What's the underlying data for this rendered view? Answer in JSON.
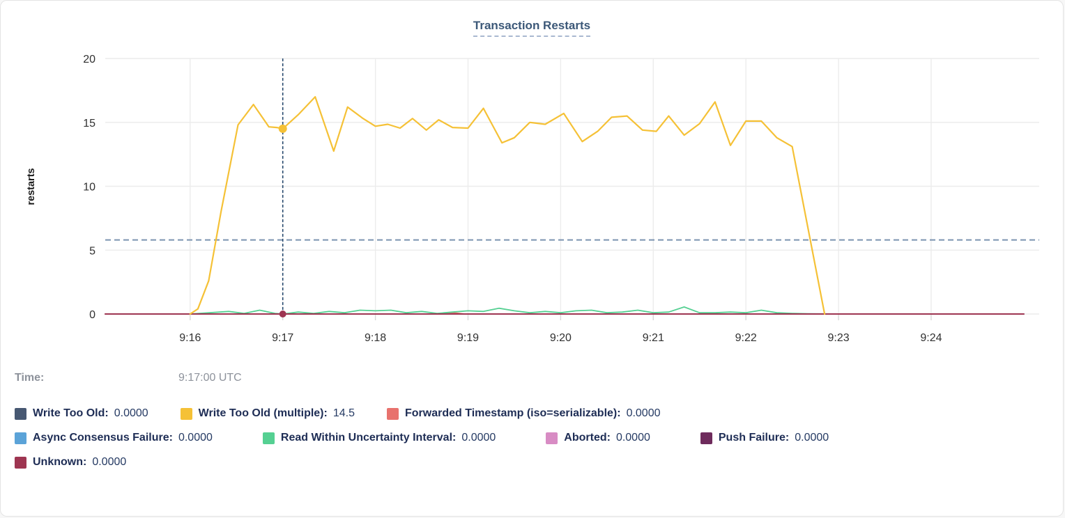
{
  "title": "Transaction Restarts",
  "tooltip": {
    "time_label": "Time:",
    "time_value": "9:17:00 UTC"
  },
  "chart_data": {
    "type": "line",
    "title": "Transaction Restarts",
    "xlabel": "",
    "ylabel": "restarts",
    "ylim": [
      0,
      20
    ],
    "yticks": [
      0,
      5,
      10,
      15,
      20
    ],
    "xticks": [
      {
        "label": "9:16",
        "t": "9:16:00"
      },
      {
        "label": "9:17",
        "t": "9:17:00"
      },
      {
        "label": "9:18",
        "t": "9:18:00"
      },
      {
        "label": "9:19",
        "t": "9:19:00"
      },
      {
        "label": "9:20",
        "t": "9:20:00"
      },
      {
        "label": "9:21",
        "t": "9:21:00"
      },
      {
        "label": "9:22",
        "t": "9:22:00"
      },
      {
        "label": "9:23",
        "t": "9:23:00"
      },
      {
        "label": "9:24",
        "t": "9:24:00"
      }
    ],
    "x_domain": [
      "9:15:05",
      "9:25:10"
    ],
    "grid": true,
    "legend_position": "bottom",
    "cursor": {
      "time": "9:17:00",
      "color": "#26486d"
    },
    "threshold_line": {
      "value": 5.8,
      "color": "#7b93b0"
    },
    "series": [
      {
        "name": "Write Too Old",
        "color": "#475872",
        "z": 0,
        "width": 1.8,
        "legend_value": "0.0000",
        "points": [
          [
            "9:15:05",
            0
          ],
          [
            "9:25:00",
            0
          ]
        ]
      },
      {
        "name": "Write Too Old (multiple)",
        "color": "#f5c136",
        "z": 7,
        "width": 2.2,
        "legend_value": "14.5",
        "cursor_dot": true,
        "cursor_value": 14.5,
        "dot_r": 6,
        "points": [
          [
            "9:16:00",
            0
          ],
          [
            "9:16:05",
            0.4
          ],
          [
            "9:16:12",
            2.6
          ],
          [
            "9:16:20",
            8.0
          ],
          [
            "9:16:31",
            14.8
          ],
          [
            "9:16:41",
            16.4
          ],
          [
            "9:16:51",
            14.65
          ],
          [
            "9:16:56",
            14.6
          ],
          [
            "9:17:00",
            14.5
          ],
          [
            "9:17:10",
            15.6
          ],
          [
            "9:17:21",
            17.0
          ],
          [
            "9:17:33",
            12.75
          ],
          [
            "9:17:42",
            16.2
          ],
          [
            "9:17:52",
            15.3
          ],
          [
            "9:18:00",
            14.7
          ],
          [
            "9:18:08",
            14.85
          ],
          [
            "9:18:16",
            14.55
          ],
          [
            "9:18:24",
            15.3
          ],
          [
            "9:18:33",
            14.4
          ],
          [
            "9:18:41",
            15.2
          ],
          [
            "9:18:50",
            14.6
          ],
          [
            "9:19:00",
            14.55
          ],
          [
            "9:19:10",
            16.1
          ],
          [
            "9:19:22",
            13.4
          ],
          [
            "9:19:30",
            13.8
          ],
          [
            "9:19:40",
            15.0
          ],
          [
            "9:19:50",
            14.85
          ],
          [
            "9:20:02",
            15.7
          ],
          [
            "9:20:14",
            13.5
          ],
          [
            "9:20:24",
            14.3
          ],
          [
            "9:20:33",
            15.4
          ],
          [
            "9:20:43",
            15.5
          ],
          [
            "9:20:53",
            14.4
          ],
          [
            "9:21:02",
            14.3
          ],
          [
            "9:21:10",
            15.5
          ],
          [
            "9:21:20",
            14.0
          ],
          [
            "9:21:30",
            14.9
          ],
          [
            "9:21:40",
            16.6
          ],
          [
            "9:21:50",
            13.2
          ],
          [
            "9:22:00",
            15.1
          ],
          [
            "9:22:10",
            15.1
          ],
          [
            "9:22:20",
            13.8
          ],
          [
            "9:22:30",
            13.1
          ],
          [
            "9:22:51",
            0
          ]
        ]
      },
      {
        "name": "Forwarded Timestamp (iso=serializable)",
        "color": "#e8726d",
        "z": 4,
        "width": 1.8,
        "legend_value": "0.0000",
        "points": [
          [
            "9:15:05",
            0
          ],
          [
            "9:18:42",
            0
          ],
          [
            "9:18:50",
            0.1
          ],
          [
            "9:18:58",
            0
          ],
          [
            "9:25:00",
            0
          ]
        ]
      },
      {
        "name": "Async Consensus Failure",
        "color": "#5ba3d8",
        "z": 1,
        "width": 1.8,
        "legend_value": "0.0000",
        "points": [
          [
            "9:15:05",
            0
          ],
          [
            "9:25:00",
            0
          ]
        ]
      },
      {
        "name": "Read Within Uncertainty Interval",
        "color": "#55d092",
        "z": 5,
        "width": 1.8,
        "legend_value": "0.0000",
        "points": [
          [
            "9:16:00",
            0
          ],
          [
            "9:16:25",
            0.2
          ],
          [
            "9:16:35",
            0.05
          ],
          [
            "9:16:45",
            0.3
          ],
          [
            "9:16:55",
            0.05
          ],
          [
            "9:17:00",
            0
          ],
          [
            "9:17:10",
            0.15
          ],
          [
            "9:17:20",
            0.05
          ],
          [
            "9:17:30",
            0.2
          ],
          [
            "9:17:40",
            0.1
          ],
          [
            "9:17:50",
            0.3
          ],
          [
            "9:18:00",
            0.25
          ],
          [
            "9:18:10",
            0.3
          ],
          [
            "9:18:20",
            0.1
          ],
          [
            "9:18:30",
            0.2
          ],
          [
            "9:18:40",
            0.05
          ],
          [
            "9:18:50",
            0.15
          ],
          [
            "9:19:00",
            0.25
          ],
          [
            "9:19:10",
            0.2
          ],
          [
            "9:19:20",
            0.45
          ],
          [
            "9:19:30",
            0.25
          ],
          [
            "9:19:40",
            0.1
          ],
          [
            "9:19:50",
            0.2
          ],
          [
            "9:20:00",
            0.1
          ],
          [
            "9:20:10",
            0.25
          ],
          [
            "9:20:20",
            0.3
          ],
          [
            "9:20:30",
            0.1
          ],
          [
            "9:20:40",
            0.15
          ],
          [
            "9:20:50",
            0.3
          ],
          [
            "9:21:00",
            0.1
          ],
          [
            "9:21:10",
            0.15
          ],
          [
            "9:21:20",
            0.55
          ],
          [
            "9:21:30",
            0.1
          ],
          [
            "9:21:40",
            0.1
          ],
          [
            "9:21:50",
            0.15
          ],
          [
            "9:22:00",
            0.1
          ],
          [
            "9:22:10",
            0.3
          ],
          [
            "9:22:20",
            0.1
          ],
          [
            "9:22:30",
            0.05
          ],
          [
            "9:22:40",
            0.02
          ],
          [
            "9:23:00",
            0
          ]
        ]
      },
      {
        "name": "Aborted",
        "color": "#d88cc4",
        "z": 2,
        "width": 1.8,
        "legend_value": "0.0000",
        "points": [
          [
            "9:15:05",
            0
          ],
          [
            "9:25:00",
            0
          ]
        ]
      },
      {
        "name": "Push Failure",
        "color": "#6e2b5c",
        "z": 3,
        "width": 1.8,
        "legend_value": "0.0000",
        "points": [
          [
            "9:15:05",
            0
          ],
          [
            "9:25:00",
            0
          ]
        ]
      },
      {
        "name": "Unknown",
        "color": "#9e3551",
        "z": 6,
        "width": 2.0,
        "legend_value": "0.0000",
        "cursor_dot": true,
        "cursor_value": 0,
        "dot_r": 5,
        "points": [
          [
            "9:15:05",
            0
          ],
          [
            "9:25:00",
            0
          ]
        ]
      }
    ],
    "legend_rows": [
      [
        0,
        1,
        2
      ],
      [
        3,
        4,
        5,
        6
      ],
      [
        7
      ]
    ]
  },
  "style": {
    "grid_color": "#ececec",
    "tick_color": "#d8d8d8",
    "axis_text_color": "#303030",
    "ylabel_color": "#1a1a1a"
  }
}
